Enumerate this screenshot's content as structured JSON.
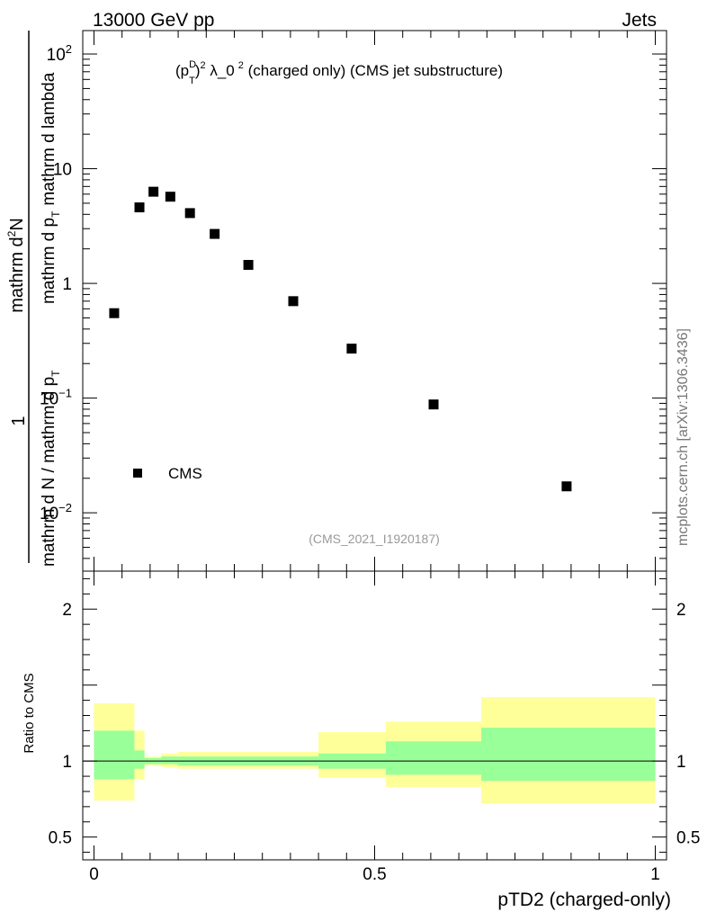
{
  "header": {
    "energy_label": "13000 GeV pp",
    "process_label": "Jets"
  },
  "watermark": {
    "site_label": "mcplots.cern.ch [arXiv:1306.3436]",
    "analysis_id": "(CMS_2021_I1920187)"
  },
  "chart_data": [
    {
      "type": "scatter",
      "title_parts": {
        "p": "(p",
        "sup_d": "D",
        "sub_t": "T",
        "close": ")",
        "sup_2": "2",
        "lambda": " λ_0",
        "sup_2b": "2",
        "rest": " (charged only) (CMS jet substructure)"
      },
      "ylabel_parts": {
        "one": "1",
        "denominator": "mathrm d N / mathrm d p",
        "denominator_sub": "T",
        "numerator_top": "mathrm d",
        "numerator_sup": "2",
        "numerator_n": "N",
        "numerator_middle": "mathrm d p",
        "numerator_sub": "T",
        "numerator_tail": "mathrm d lambda"
      },
      "yscale": "log",
      "ylim": [
        0.0031,
        160
      ],
      "xlim": [
        -0.02,
        1.02
      ],
      "ytick_labels": [
        {
          "value": 0.01,
          "base": "10",
          "exp": "−2"
        },
        {
          "value": 0.1,
          "base": "10",
          "exp": "−1"
        },
        {
          "value": 1,
          "base": "1",
          "exp": ""
        },
        {
          "value": 10,
          "base": "10",
          "exp": ""
        },
        {
          "value": 100,
          "base": "10",
          "exp": "2"
        }
      ],
      "series": [
        {
          "name": "CMS",
          "color": "#000000",
          "x": [
            0.036,
            0.081,
            0.106,
            0.136,
            0.171,
            0.215,
            0.275,
            0.355,
            0.459,
            0.605,
            0.842
          ],
          "y": [
            0.55,
            4.6,
            6.3,
            5.7,
            4.1,
            2.7,
            1.45,
            0.7,
            0.27,
            0.088,
            0.017
          ]
        }
      ],
      "legend_position": "bottom-left"
    },
    {
      "type": "area",
      "ylabel": "Ratio to CMS",
      "xlabel": "pTD2 (charged-only)",
      "ylim": [
        0.35,
        2.25
      ],
      "xlim": [
        -0.02,
        1.02
      ],
      "xtick_labels": [
        {
          "value": 0,
          "label": "0"
        },
        {
          "value": 0.5,
          "label": "0.5"
        },
        {
          "value": 1,
          "label": "1"
        }
      ],
      "ytick_labels": [
        {
          "value": 0.5,
          "label": "0.5"
        },
        {
          "value": 1,
          "label": "1"
        },
        {
          "value": 2,
          "label": "2"
        }
      ],
      "reference_line": 1,
      "band_colors": {
        "outer": "#ffff99",
        "inner": "#99ff99"
      },
      "bins": [
        {
          "x0": 0.0,
          "x1": 0.072,
          "outer": [
            0.74,
            1.38
          ],
          "inner": [
            0.88,
            1.2
          ]
        },
        {
          "x0": 0.072,
          "x1": 0.09,
          "outer": [
            0.88,
            1.2
          ],
          "inner": [
            0.95,
            1.07
          ]
        },
        {
          "x0": 0.09,
          "x1": 0.12,
          "outer": [
            0.97,
            1.03
          ],
          "inner": [
            0.98,
            1.02
          ]
        },
        {
          "x0": 0.12,
          "x1": 0.15,
          "outer": [
            0.96,
            1.05
          ],
          "inner": [
            0.98,
            1.03
          ]
        },
        {
          "x0": 0.15,
          "x1": 0.4,
          "outer": [
            0.95,
            1.06
          ],
          "inner": [
            0.97,
            1.03
          ]
        },
        {
          "x0": 0.4,
          "x1": 0.52,
          "outer": [
            0.89,
            1.19
          ],
          "inner": [
            0.95,
            1.05
          ]
        },
        {
          "x0": 0.52,
          "x1": 0.69,
          "outer": [
            0.83,
            1.26
          ],
          "inner": [
            0.91,
            1.13
          ]
        },
        {
          "x0": 0.69,
          "x1": 1.0,
          "outer": [
            0.72,
            1.42
          ],
          "inner": [
            0.87,
            1.22
          ]
        }
      ]
    }
  ]
}
